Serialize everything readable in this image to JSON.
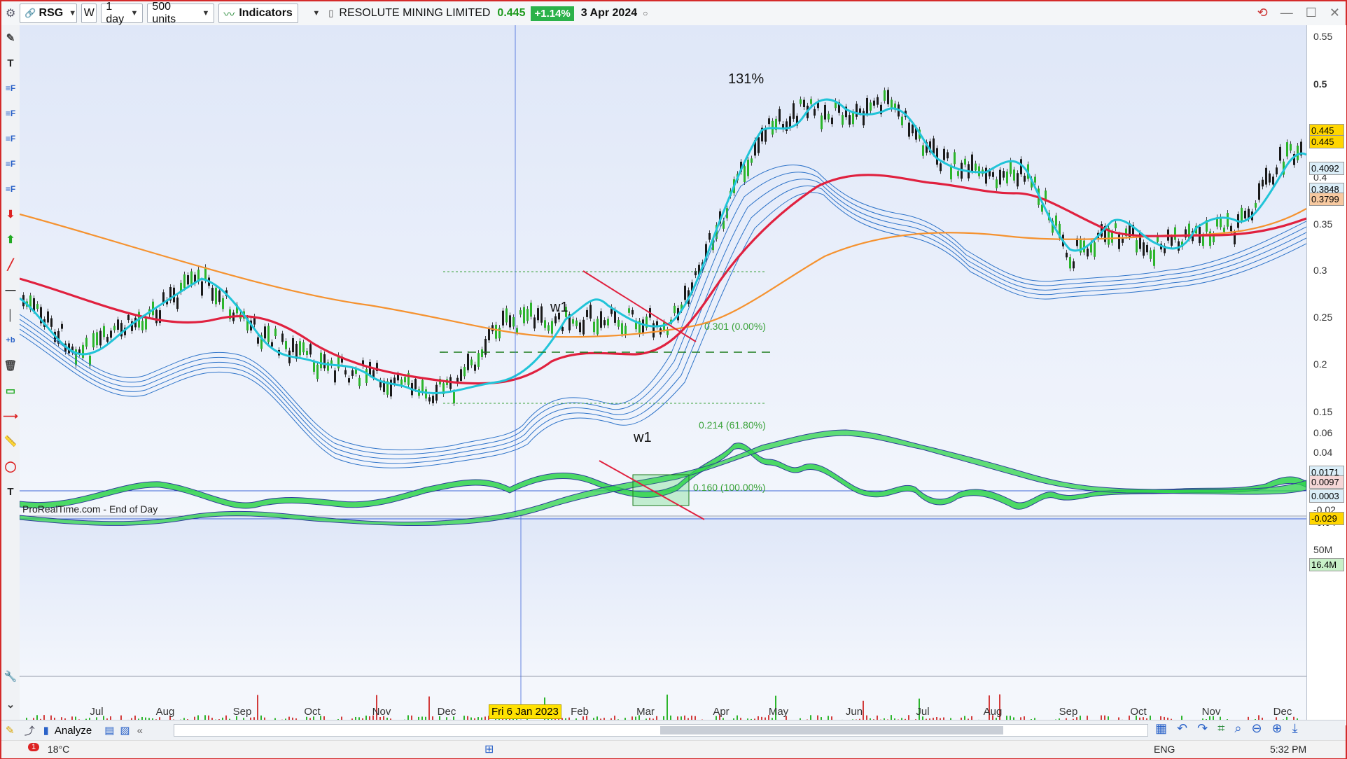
{
  "toolbar": {
    "symbol": "RSG",
    "interval": "1 day",
    "units": "500 units",
    "indicators_label": "Indicators",
    "instrument_name": "RESOLUTE MINING LIMITED",
    "last_price": "0.445",
    "change": "+1.14%",
    "date": "3 Apr 2024",
    "w_label": "W"
  },
  "chart": {
    "source_label": "ProRealTime.com - End of Day",
    "annotations": {
      "peak_pct": "131%",
      "w1_top": "w1",
      "w1_bottom": "w1"
    },
    "fibonacci": [
      {
        "label": "0.301 (0.00%)"
      },
      {
        "label": "0.214 (61.80%)"
      },
      {
        "label": "0.160 (100.00%)"
      }
    ],
    "price_axis_ticks": [
      "0.55",
      "0.5",
      "0.45",
      "0.4",
      "0.35",
      "0.3",
      "0.25",
      "0.2",
      "0.15"
    ],
    "price_badges": [
      {
        "text": "0.445",
        "color": "#ffd600"
      },
      {
        "text": "0.445",
        "color": "#ffd600"
      },
      {
        "text": "0.4092",
        "color": "#dbeef8"
      },
      {
        "text": "0.3848",
        "color": "#dbeef8"
      },
      {
        "text": "0.3799",
        "color": "#f7c9a0"
      }
    ],
    "osc_axis_ticks": [
      "0.06",
      "0.04",
      "0.02",
      "-0.02",
      "-0.04"
    ],
    "osc_badges": [
      {
        "text": "0.0171",
        "color": "#dbeef8"
      },
      {
        "text": "0.0097",
        "color": "#f5d7d7"
      },
      {
        "text": "0.0003",
        "color": "#dbeef8"
      },
      {
        "text": "-0.029",
        "color": "#ffd600"
      }
    ],
    "volume_ticks": [
      "50M"
    ],
    "volume_badge": "16.4M",
    "x_axis_months": [
      "Jul",
      "Aug",
      "Sep",
      "Oct",
      "Nov",
      "Dec",
      "Feb",
      "Mar",
      "Apr",
      "May",
      "Jun",
      "Jul",
      "Aug",
      "Sep",
      "Oct",
      "Nov",
      "Dec"
    ],
    "x_axis_cursor_date": "Fri 6 Jan 2023",
    "colors": {
      "ema_short": "#21c4d8",
      "ema_ribbon": "#2f74c9",
      "ema_long": "#e0213f",
      "ema_200": "#f5922f",
      "fib": "#3aa23a",
      "trendline": "#e0213f"
    }
  },
  "bottom": {
    "analyze_label": "Analyze"
  },
  "taskbar": {
    "weather": "18°C",
    "lang": "ENG",
    "time": "5:32 PM",
    "notif": "1"
  }
}
